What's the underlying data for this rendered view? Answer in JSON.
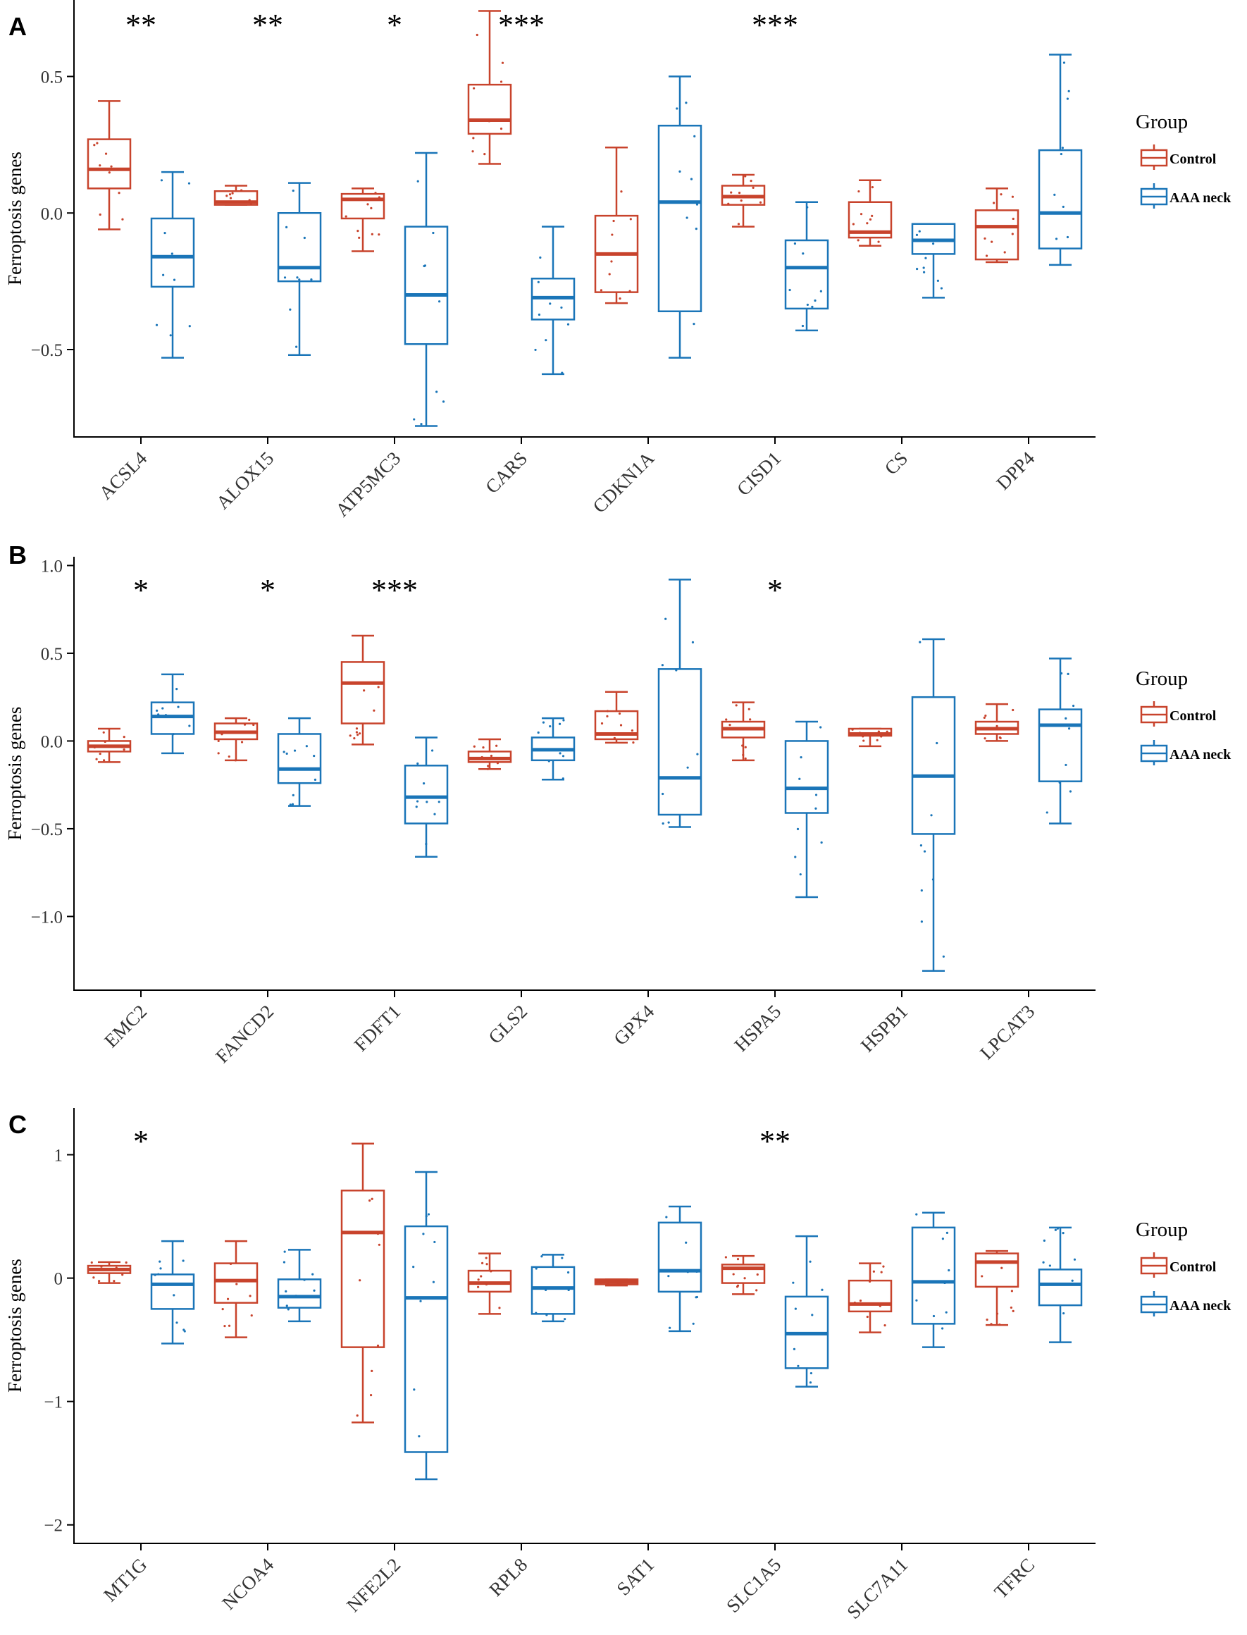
{
  "colors": {
    "control": "#C8432C",
    "aaa_neck": "#1A75B8",
    "axis": "#000000",
    "text": "#333333"
  },
  "chart_data": [
    {
      "type": "boxplot",
      "panel": "A",
      "ylabel": "Ferroptosis genes",
      "ylim": [
        -0.82,
        0.78
      ],
      "yticks": [
        -0.5,
        0.0,
        0.5
      ],
      "ytick_labels": [
        "−0.5",
        "0.0",
        "0.5"
      ],
      "legend": {
        "title": "Group",
        "entries": [
          "Control",
          "AAA neck"
        ],
        "position": "right"
      },
      "categories": [
        "ACSL4",
        "ALOX15",
        "ATP5MC3",
        "CARS",
        "CDKN1A",
        "CISD1",
        "CS",
        "DPP4"
      ],
      "significance": [
        "**",
        "**",
        "*",
        "***",
        "",
        "***",
        "",
        ""
      ],
      "series": [
        {
          "name": "Control",
          "boxes": [
            [
              -0.06,
              0.09,
              0.16,
              0.27,
              0.41
            ],
            [
              0.03,
              0.03,
              0.04,
              0.08,
              0.1
            ],
            [
              -0.14,
              -0.02,
              0.05,
              0.07,
              0.09
            ],
            [
              0.18,
              0.29,
              0.34,
              0.47,
              0.74
            ],
            [
              -0.33,
              -0.29,
              -0.15,
              -0.01,
              0.24
            ],
            [
              -0.05,
              0.03,
              0.06,
              0.1,
              0.14
            ],
            [
              -0.12,
              -0.09,
              -0.07,
              0.04,
              0.12
            ],
            [
              -0.18,
              -0.17,
              -0.05,
              0.01,
              0.09
            ]
          ]
        },
        {
          "name": "AAA neck",
          "boxes": [
            [
              -0.53,
              -0.27,
              -0.16,
              -0.02,
              0.15
            ],
            [
              -0.52,
              -0.25,
              -0.2,
              0.0,
              0.11
            ],
            [
              -0.78,
              -0.48,
              -0.3,
              -0.05,
              0.22
            ],
            [
              -0.59,
              -0.39,
              -0.31,
              -0.24,
              -0.05
            ],
            [
              -0.53,
              -0.36,
              0.04,
              0.32,
              0.5
            ],
            [
              -0.43,
              -0.35,
              -0.2,
              -0.1,
              0.04
            ],
            [
              -0.31,
              -0.15,
              -0.1,
              -0.04,
              -0.04
            ],
            [
              -0.19,
              -0.13,
              0.0,
              0.23,
              0.58
            ]
          ]
        }
      ]
    },
    {
      "type": "boxplot",
      "panel": "B",
      "ylabel": "Ferroptosis genes",
      "ylim": [
        -1.42,
        1.05
      ],
      "yticks": [
        -1.0,
        -0.5,
        0.0,
        0.5,
        1.0
      ],
      "ytick_labels": [
        "−1.0",
        "−0.5",
        "0.0",
        "0.5",
        "1.0"
      ],
      "legend": {
        "title": "Group",
        "entries": [
          "Control",
          "AAA neck"
        ],
        "position": "right"
      },
      "categories": [
        "EMC2",
        "FANCD2",
        "FDFT1",
        "GLS2",
        "GPX4",
        "HSPA5",
        "HSPB1",
        "LPCAT3"
      ],
      "significance": [
        "*",
        "*",
        "***",
        "",
        "",
        "*",
        "",
        ""
      ],
      "series": [
        {
          "name": "Control",
          "boxes": [
            [
              -0.12,
              -0.06,
              -0.03,
              0.0,
              0.07
            ],
            [
              -0.11,
              0.01,
              0.05,
              0.1,
              0.13
            ],
            [
              -0.02,
              0.1,
              0.33,
              0.45,
              0.6
            ],
            [
              -0.16,
              -0.12,
              -0.1,
              -0.06,
              0.01
            ],
            [
              -0.01,
              0.01,
              0.04,
              0.17,
              0.28
            ],
            [
              -0.11,
              0.02,
              0.07,
              0.11,
              0.22
            ],
            [
              -0.03,
              0.03,
              0.04,
              0.07,
              0.07
            ],
            [
              0.0,
              0.04,
              0.07,
              0.11,
              0.21
            ]
          ]
        },
        {
          "name": "AAA neck",
          "boxes": [
            [
              -0.07,
              0.04,
              0.14,
              0.22,
              0.38
            ],
            [
              -0.37,
              -0.24,
              -0.16,
              0.04,
              0.13
            ],
            [
              -0.66,
              -0.47,
              -0.32,
              -0.14,
              0.02
            ],
            [
              -0.22,
              -0.11,
              -0.05,
              0.02,
              0.13
            ],
            [
              -0.49,
              -0.42,
              -0.21,
              0.41,
              0.92
            ],
            [
              -0.89,
              -0.41,
              -0.27,
              0.0,
              0.11
            ],
            [
              -1.31,
              -0.53,
              -0.2,
              0.25,
              0.58
            ],
            [
              -0.47,
              -0.23,
              0.09,
              0.18,
              0.47
            ]
          ]
        }
      ]
    },
    {
      "type": "boxplot",
      "panel": "C",
      "ylabel": "Ferroptosis genes",
      "ylim": [
        -2.15,
        1.38
      ],
      "yticks": [
        -2,
        -1,
        0,
        1
      ],
      "ytick_labels": [
        "−2",
        "−1",
        "0",
        "1"
      ],
      "legend": {
        "title": "Group",
        "entries": [
          "Control",
          "AAA neck"
        ],
        "position": "right"
      },
      "categories": [
        "MT1G",
        "NCOA4",
        "NFE2L2",
        "RPL8",
        "SAT1",
        "SLC1A5",
        "SLC7A11",
        "TFRC"
      ],
      "significance": [
        "*",
        "",
        "",
        "",
        "",
        "**",
        "",
        ""
      ],
      "series": [
        {
          "name": "Control",
          "boxes": [
            [
              -0.04,
              0.04,
              0.07,
              0.1,
              0.13
            ],
            [
              -0.48,
              -0.2,
              -0.02,
              0.12,
              0.3
            ],
            [
              -1.17,
              -0.56,
              0.37,
              0.71,
              1.09
            ],
            [
              -0.29,
              -0.11,
              -0.04,
              0.06,
              0.2
            ],
            [
              -0.06,
              -0.05,
              -0.03,
              -0.01,
              -0.01
            ],
            [
              -0.13,
              -0.04,
              0.08,
              0.11,
              0.18
            ],
            [
              -0.44,
              -0.27,
              -0.21,
              -0.02,
              0.12
            ],
            [
              -0.38,
              -0.07,
              0.13,
              0.2,
              0.22
            ]
          ]
        },
        {
          "name": "AAA neck",
          "boxes": [
            [
              -0.53,
              -0.25,
              -0.05,
              0.03,
              0.3
            ],
            [
              -0.35,
              -0.24,
              -0.15,
              -0.01,
              0.23
            ],
            [
              -1.63,
              -1.41,
              -0.16,
              0.42,
              0.86
            ],
            [
              -0.35,
              -0.29,
              -0.08,
              0.09,
              0.19
            ],
            [
              -0.43,
              -0.11,
              0.06,
              0.45,
              0.58
            ],
            [
              -0.88,
              -0.73,
              -0.45,
              -0.15,
              0.34
            ],
            [
              -0.56,
              -0.37,
              -0.03,
              0.41,
              0.53
            ],
            [
              -0.52,
              -0.22,
              -0.05,
              0.07,
              0.41
            ]
          ]
        }
      ]
    }
  ]
}
